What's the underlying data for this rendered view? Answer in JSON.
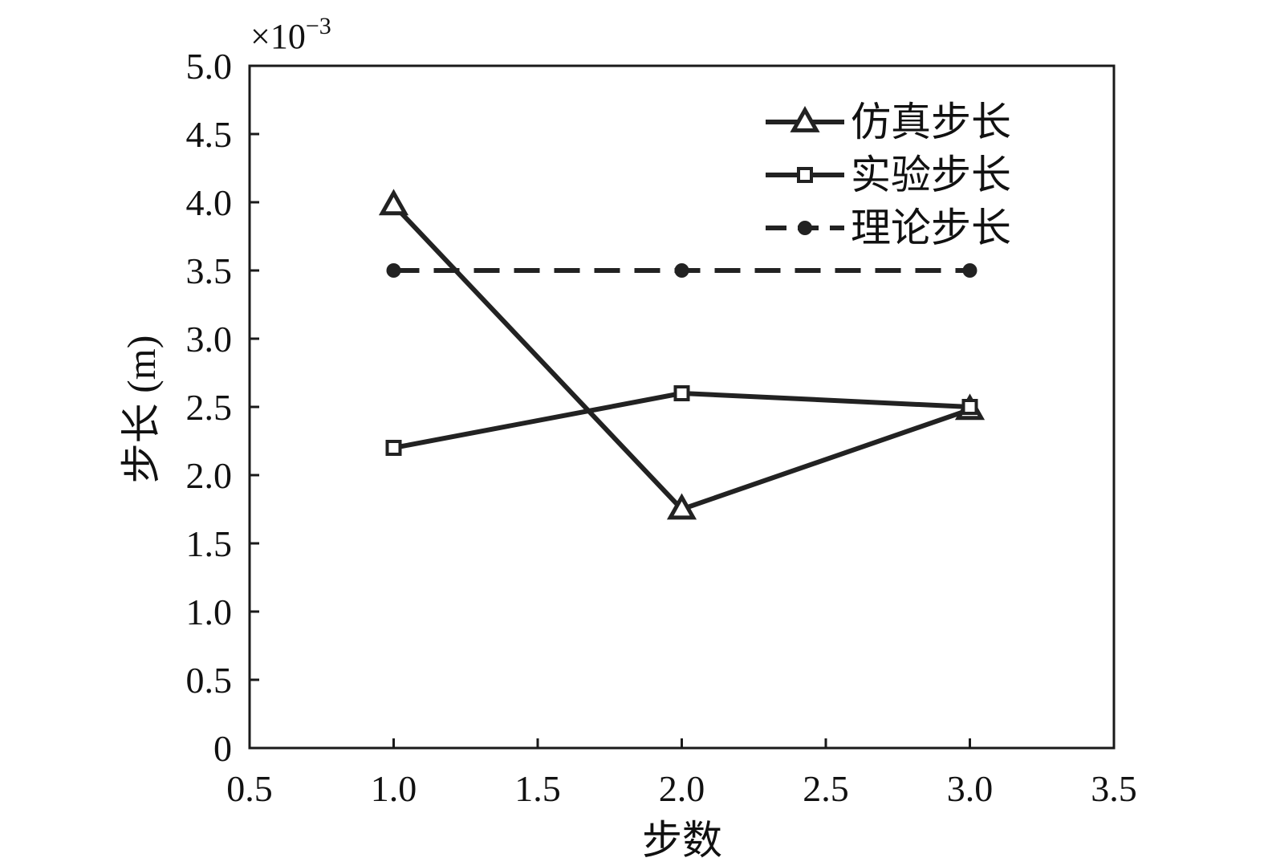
{
  "chart_data": {
    "type": "line",
    "title": "",
    "xlabel": "步数",
    "ylabel": "步长 (m)",
    "y_multiplier": "×10",
    "y_multiplier_exp": "−3",
    "xlim": [
      0.5,
      3.5
    ],
    "ylim": [
      0,
      5.0
    ],
    "x_ticks": [
      {
        "value": 0.5,
        "label": "0.5"
      },
      {
        "value": 1.0,
        "label": "1.0"
      },
      {
        "value": 1.5,
        "label": "1.5"
      },
      {
        "value": 2.0,
        "label": "2.0"
      },
      {
        "value": 2.5,
        "label": "2.5"
      },
      {
        "value": 3.0,
        "label": "3.0"
      },
      {
        "value": 3.5,
        "label": "3.5"
      }
    ],
    "y_ticks": [
      {
        "value": 0,
        "label": "0"
      },
      {
        "value": 0.5,
        "label": "0.5"
      },
      {
        "value": 1.0,
        "label": "1.0"
      },
      {
        "value": 1.5,
        "label": "1.5"
      },
      {
        "value": 2.0,
        "label": "2.0"
      },
      {
        "value": 2.5,
        "label": "2.5"
      },
      {
        "value": 3.0,
        "label": "3.0"
      },
      {
        "value": 3.5,
        "label": "3.5"
      },
      {
        "value": 4.0,
        "label": "4.0"
      },
      {
        "value": 4.5,
        "label": "4.5"
      },
      {
        "value": 5.0,
        "label": "5.0"
      }
    ],
    "grid": false,
    "legend_position": "top-right",
    "x": [
      1.0,
      2.0,
      3.0
    ],
    "series": [
      {
        "name": "仿真步长",
        "marker": "triangle-open",
        "line_style": "solid",
        "color": "#222222",
        "values": [
          3.98,
          1.75,
          2.48
        ]
      },
      {
        "name": "实验步长",
        "marker": "square-open",
        "line_style": "solid",
        "color": "#222222",
        "values": [
          2.2,
          2.6,
          2.5
        ]
      },
      {
        "name": "理论步长",
        "marker": "circle-filled",
        "line_style": "dashed",
        "color": "#222222",
        "values": [
          3.5,
          3.5,
          3.5
        ]
      }
    ]
  }
}
